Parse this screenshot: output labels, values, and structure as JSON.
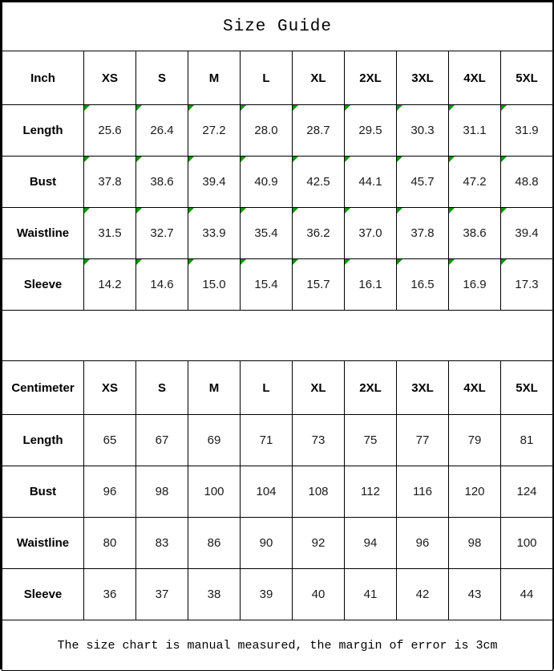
{
  "title": "Size Guide",
  "footer_note": "The size chart is manual measured, the margin of error is 3cm",
  "marker_color": "#089508",
  "chart_data": [
    {
      "type": "table",
      "unit": "Inch",
      "sizes": [
        "XS",
        "S",
        "M",
        "L",
        "XL",
        "2XL",
        "3XL",
        "4XL",
        "5XL"
      ],
      "corner_markers": true,
      "rows": [
        {
          "label": "Length",
          "values": [
            "25.6",
            "26.4",
            "27.2",
            "28.0",
            "28.7",
            "29.5",
            "30.3",
            "31.1",
            "31.9"
          ]
        },
        {
          "label": "Bust",
          "values": [
            "37.8",
            "38.6",
            "39.4",
            "40.9",
            "42.5",
            "44.1",
            "45.7",
            "47.2",
            "48.8"
          ]
        },
        {
          "label": "Waistline",
          "values": [
            "31.5",
            "32.7",
            "33.9",
            "35.4",
            "36.2",
            "37.0",
            "37.8",
            "38.6",
            "39.4"
          ]
        },
        {
          "label": "Sleeve",
          "values": [
            "14.2",
            "14.6",
            "15.0",
            "15.4",
            "15.7",
            "16.1",
            "16.5",
            "16.9",
            "17.3"
          ]
        }
      ]
    },
    {
      "type": "table",
      "unit": "Centimeter",
      "sizes": [
        "XS",
        "S",
        "M",
        "L",
        "XL",
        "2XL",
        "3XL",
        "4XL",
        "5XL"
      ],
      "corner_markers": false,
      "rows": [
        {
          "label": "Length",
          "values": [
            "65",
            "67",
            "69",
            "71",
            "73",
            "75",
            "77",
            "79",
            "81"
          ]
        },
        {
          "label": "Bust",
          "values": [
            "96",
            "98",
            "100",
            "104",
            "108",
            "112",
            "116",
            "120",
            "124"
          ]
        },
        {
          "label": "Waistline",
          "values": [
            "80",
            "83",
            "86",
            "90",
            "92",
            "94",
            "96",
            "98",
            "100"
          ]
        },
        {
          "label": "Sleeve",
          "values": [
            "36",
            "37",
            "38",
            "39",
            "40",
            "41",
            "42",
            "43",
            "44"
          ]
        }
      ]
    }
  ]
}
